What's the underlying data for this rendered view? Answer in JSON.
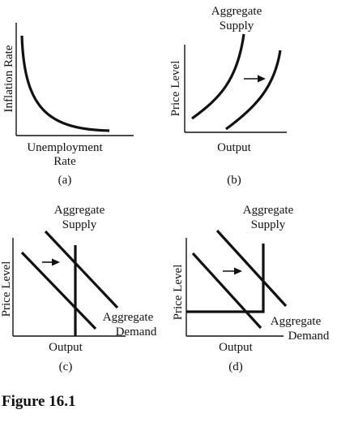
{
  "panel_a": {
    "y_label": "Inflation Rate",
    "x_label_line1": "Unemployment",
    "x_label_line2": "Rate",
    "caption": "(a)"
  },
  "panel_b": {
    "y_label": "Price Level",
    "x_label": "Output",
    "curve_label_line1": "Aggregate",
    "curve_label_line2": "Supply",
    "caption": "(b)"
  },
  "panel_c": {
    "y_label": "Price Level",
    "x_label": "Output",
    "supply_label_line1": "Aggregate",
    "supply_label_line2": "Supply",
    "demand_label_line1": "Aggregate",
    "demand_label_line2": "Demand",
    "caption": "(c)"
  },
  "panel_d": {
    "y_label": "Price Level",
    "x_label": "Output",
    "supply_label_line1": "Aggregate",
    "supply_label_line2": "Supply",
    "demand_label_line1": "Aggregate",
    "demand_label_line2": "Demand",
    "caption": "(d)"
  },
  "figure_title": "Figure 16.1"
}
